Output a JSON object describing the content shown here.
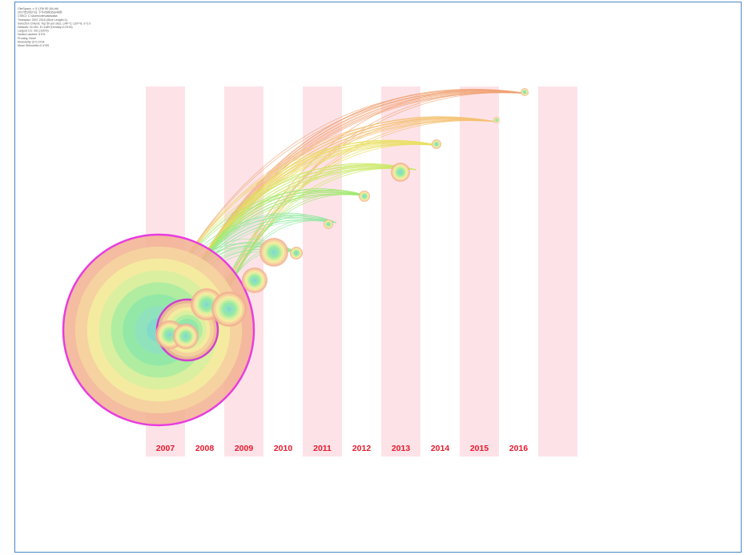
{
  "header": {
    "lines": [
      "CiteSpace, v. 5.1.R8 SE (64-bit)",
      "2017年9月27日 下午05时36分46秒",
      "CSSCI: C:\\Users\\cite\\data\\data",
      "Timespan: 2007-2016 (Slice Length=1)",
      "Selection Criteria: Top 50 per slice, LRF=2, LBY=8, e=2.0",
      "Network: N=251, E=1189 (Density=0.0378)",
      "Largest CC: 251 (100%)",
      "Nodes Labeled: 5.0%",
      "Pruning: None",
      "Modularity Q=0.3734",
      "Mean Silhouette=0.4799"
    ]
  },
  "timeline": {
    "years": [
      "2007",
      "2008",
      "2009",
      "2010",
      "2011",
      "2012",
      "2013",
      "2014",
      "2015",
      "2016"
    ]
  }
}
